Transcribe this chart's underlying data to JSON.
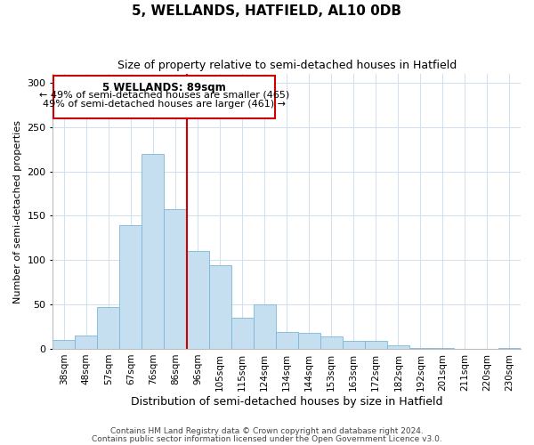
{
  "title": "5, WELLANDS, HATFIELD, AL10 0DB",
  "subtitle": "Size of property relative to semi-detached houses in Hatfield",
  "xlabel": "Distribution of semi-detached houses by size in Hatfield",
  "ylabel": "Number of semi-detached properties",
  "categories": [
    "38sqm",
    "48sqm",
    "57sqm",
    "67sqm",
    "76sqm",
    "86sqm",
    "96sqm",
    "105sqm",
    "115sqm",
    "124sqm",
    "134sqm",
    "144sqm",
    "153sqm",
    "163sqm",
    "172sqm",
    "182sqm",
    "192sqm",
    "201sqm",
    "211sqm",
    "220sqm",
    "230sqm"
  ],
  "values": [
    10,
    15,
    47,
    139,
    220,
    158,
    110,
    94,
    35,
    50,
    19,
    18,
    14,
    9,
    9,
    4,
    1,
    1,
    0,
    0,
    1
  ],
  "bar_color": "#c6dff0",
  "bar_edge_color": "#7ab8d9",
  "vline_x": 5.5,
  "vline_color": "#cc0000",
  "ylim": [
    0,
    310
  ],
  "yticks": [
    0,
    50,
    100,
    150,
    200,
    250,
    300
  ],
  "annotation_title": "5 WELLANDS: 89sqm",
  "annotation_line1": "← 49% of semi-detached houses are smaller (465)",
  "annotation_line2": "49% of semi-detached houses are larger (461) →",
  "annotation_box_color": "#ffffff",
  "annotation_box_edge": "#cc0000",
  "footer1": "Contains HM Land Registry data © Crown copyright and database right 2024.",
  "footer2": "Contains public sector information licensed under the Open Government Licence v3.0.",
  "background_color": "#ffffff",
  "grid_color": "#cfe0ee",
  "title_fontsize": 11,
  "subtitle_fontsize": 9,
  "xlabel_fontsize": 9,
  "ylabel_fontsize": 8,
  "footer_fontsize": 6.5,
  "ann_title_fontsize": 8.5,
  "ann_text_fontsize": 8
}
